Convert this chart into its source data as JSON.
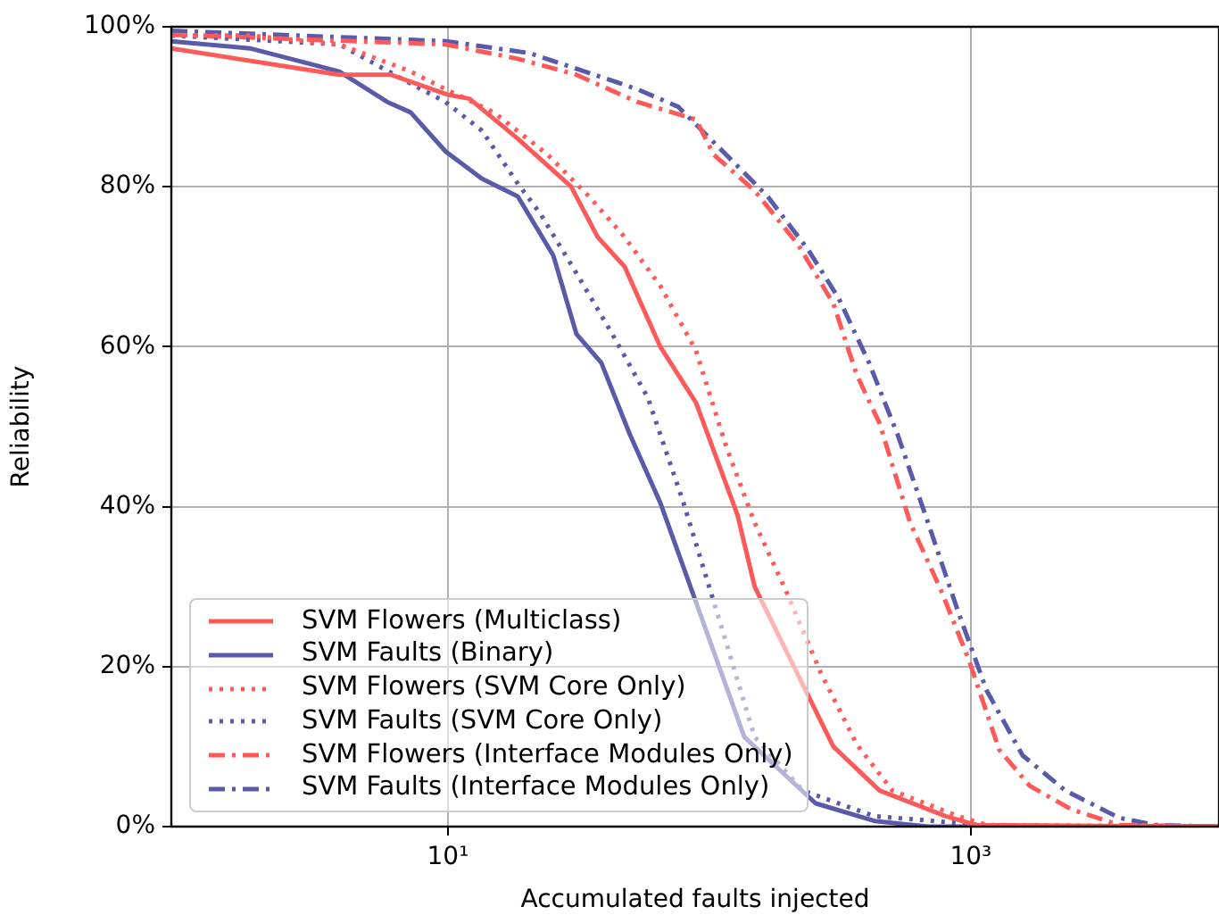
{
  "chart_data": {
    "type": "line",
    "xlabel": "Accumulated faults injected",
    "ylabel": "Reliability",
    "log": "x",
    "grid": true,
    "legend": "bottom left",
    "xlim": [
      0.875,
      8900
    ],
    "xticks": [
      {
        "value": 10,
        "label": "10¹"
      },
      {
        "value": 1000,
        "label": "10³"
      }
    ],
    "ylim": [
      0,
      100
    ],
    "yticks": [
      {
        "value": 0,
        "label": "0%"
      },
      {
        "value": 20,
        "label": "20%"
      },
      {
        "value": 40,
        "label": "40%"
      },
      {
        "value": 60,
        "label": "60%"
      },
      {
        "value": 80,
        "label": "80%"
      },
      {
        "value": 100,
        "label": "100%"
      }
    ],
    "series": [
      {
        "name": "SVM Flowers (Multiclass)",
        "color": "#ff5a5a",
        "line_style": "solid",
        "x": [
          0.875,
          3.84,
          6.05,
          10,
          12.1,
          18.5,
          29.6,
          37.4,
          47.4,
          64.9,
          88.9,
          128,
          149,
          218,
          298,
          448,
          802,
          1047,
          8900
        ],
        "values": [
          97.3,
          94,
          94,
          91.5,
          91,
          86,
          80,
          73.7,
          70,
          60,
          53,
          39,
          30,
          19,
          10,
          4.5,
          1.3,
          0.2,
          0
        ]
      },
      {
        "name": "SVM Faults (Binary)",
        "color": "#5a5aaa",
        "line_style": "solid",
        "x": [
          0.875,
          1.75,
          3.84,
          5.86,
          7.2,
          9.8,
          13.5,
          18.5,
          25.3,
          31,
          38.6,
          49.7,
          64.9,
          109,
          136,
          255,
          428,
          686,
          8900
        ],
        "values": [
          98.2,
          97.3,
          94.4,
          90.6,
          89.3,
          84.4,
          81,
          78.8,
          71.4,
          61.6,
          58,
          49,
          40.5,
          20,
          11.2,
          2.9,
          0.7,
          0,
          0
        ]
      },
      {
        "name": "SVM Flowers (SVM Core Only)",
        "color": "#ff5a5a",
        "line_style": "dotted",
        "x": [
          0.875,
          1.75,
          3.84,
          7.2,
          9.8,
          15,
          24.1,
          34.6,
          47.4,
          64.9,
          88.9,
          116,
          149,
          195,
          267,
          366,
          501,
          896,
          1151,
          8900
        ],
        "values": [
          98.9,
          98.9,
          97.8,
          94.4,
          92.2,
          89.3,
          84,
          78.8,
          73.7,
          67.6,
          59.5,
          47.5,
          38,
          29.7,
          19.2,
          10.3,
          4.5,
          1.3,
          0.2,
          0
        ]
      },
      {
        "name": "SVM Faults (SVM Core Only)",
        "color": "#5a5aaa",
        "line_style": "dotted",
        "x": [
          0.875,
          3.84,
          7.2,
          9.8,
          13.5,
          18.5,
          22.6,
          31,
          42.5,
          58.2,
          79.6,
          109,
          149,
          228,
          428,
          719,
          1285,
          8900
        ],
        "values": [
          98.9,
          97.8,
          92.9,
          90.6,
          87,
          80.4,
          76.6,
          69.2,
          61.6,
          53.6,
          40.5,
          25.9,
          11.2,
          4.5,
          1.3,
          0.7,
          0,
          0
        ]
      },
      {
        "name": "SVM Flowers (Interface Modules Only)",
        "color": "#ff5a5a",
        "line_style": "dashdot",
        "x": [
          0.875,
          9.8,
          18.5,
          31,
          53,
          88.9,
          104,
          149,
          218,
          298,
          366,
          448,
          586,
          766,
          984,
          1285,
          1679,
          2410,
          3690,
          8900
        ],
        "values": [
          99,
          97.8,
          96,
          94,
          90.6,
          88.4,
          84,
          79.5,
          72.8,
          65.4,
          56.5,
          50.4,
          38,
          29.7,
          20.8,
          9.6,
          5.1,
          2.2,
          0.2,
          0
        ]
      },
      {
        "name": "SVM Faults (Interface Modules Only)",
        "color": "#5a5aaa",
        "line_style": "dashdot",
        "x": [
          0.875,
          9.8,
          20.6,
          53,
          76,
          116,
          167,
          239,
          313,
          408,
          525,
          686,
          896,
          1151,
          1578,
          2300,
          3690,
          5050,
          8900
        ],
        "values": [
          99.5,
          98.2,
          96.7,
          92.2,
          90,
          84,
          78.8,
          72.1,
          66,
          58,
          49,
          38,
          26.8,
          17,
          8.9,
          4.5,
          1.1,
          0.2,
          0
        ]
      }
    ]
  }
}
